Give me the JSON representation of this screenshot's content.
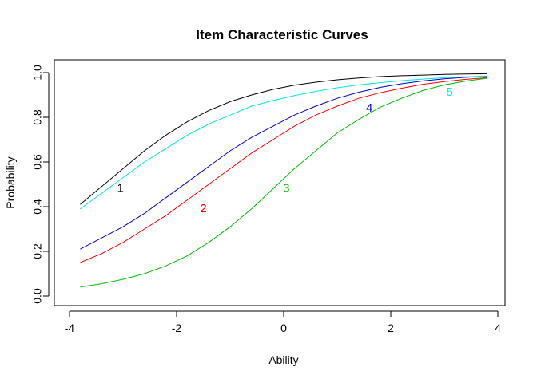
{
  "chart_data": {
    "type": "line",
    "title": "Item Characteristic Curves",
    "xlabel": "Ability",
    "ylabel": "Probability",
    "xlim": [
      -3.8,
      3.8
    ],
    "ylim": [
      0.0,
      1.0
    ],
    "x_ticks": [
      -4,
      -2,
      0,
      2,
      4
    ],
    "y_ticks": [
      0.0,
      0.2,
      0.4,
      0.6,
      0.8,
      1.0
    ],
    "x_tick_labels": [
      "-4",
      "-2",
      "0",
      "2",
      "4"
    ],
    "y_tick_labels": [
      "0.0",
      "0.2",
      "0.4",
      "0.6",
      "0.8",
      "1.0"
    ],
    "grid": false,
    "x": [
      -3.8,
      -3.4,
      -3.0,
      -2.6,
      -2.2,
      -1.8,
      -1.4,
      -1.0,
      -0.6,
      -0.2,
      0.2,
      0.6,
      1.0,
      1.4,
      1.8,
      2.2,
      2.6,
      3.0,
      3.4,
      3.8
    ],
    "series": [
      {
        "name": "1",
        "color": "#000000",
        "values": [
          0.41,
          0.49,
          0.57,
          0.65,
          0.72,
          0.78,
          0.83,
          0.87,
          0.9,
          0.925,
          0.944,
          0.957,
          0.968,
          0.976,
          0.982,
          0.986,
          0.989,
          0.992,
          0.994,
          0.995
        ],
        "label_at": [
          -3.05,
          0.48
        ]
      },
      {
        "name": "2",
        "color": "#ff0000",
        "values": [
          0.15,
          0.19,
          0.24,
          0.3,
          0.36,
          0.43,
          0.5,
          0.57,
          0.64,
          0.7,
          0.76,
          0.81,
          0.85,
          0.885,
          0.91,
          0.93,
          0.948,
          0.96,
          0.97,
          0.977
        ],
        "label_at": [
          -1.5,
          0.39
        ]
      },
      {
        "name": "3",
        "color": "#00bb00",
        "values": [
          0.04,
          0.055,
          0.075,
          0.1,
          0.135,
          0.18,
          0.24,
          0.31,
          0.39,
          0.48,
          0.57,
          0.65,
          0.73,
          0.79,
          0.845,
          0.885,
          0.92,
          0.945,
          0.962,
          0.975
        ],
        "label_at": [
          0.05,
          0.48
        ]
      },
      {
        "name": "4",
        "color": "#0000cc",
        "values": [
          0.21,
          0.26,
          0.31,
          0.37,
          0.44,
          0.51,
          0.58,
          0.65,
          0.71,
          0.76,
          0.81,
          0.85,
          0.885,
          0.912,
          0.934,
          0.95,
          0.963,
          0.972,
          0.979,
          0.984
        ],
        "label_at": [
          1.6,
          0.84
        ]
      },
      {
        "name": "5",
        "color": "#00e5e5",
        "values": [
          0.39,
          0.46,
          0.53,
          0.6,
          0.66,
          0.72,
          0.77,
          0.81,
          0.85,
          0.875,
          0.897,
          0.916,
          0.932,
          0.945,
          0.955,
          0.964,
          0.971,
          0.977,
          0.981,
          0.985
        ],
        "label_at": [
          3.1,
          0.91
        ]
      }
    ]
  }
}
